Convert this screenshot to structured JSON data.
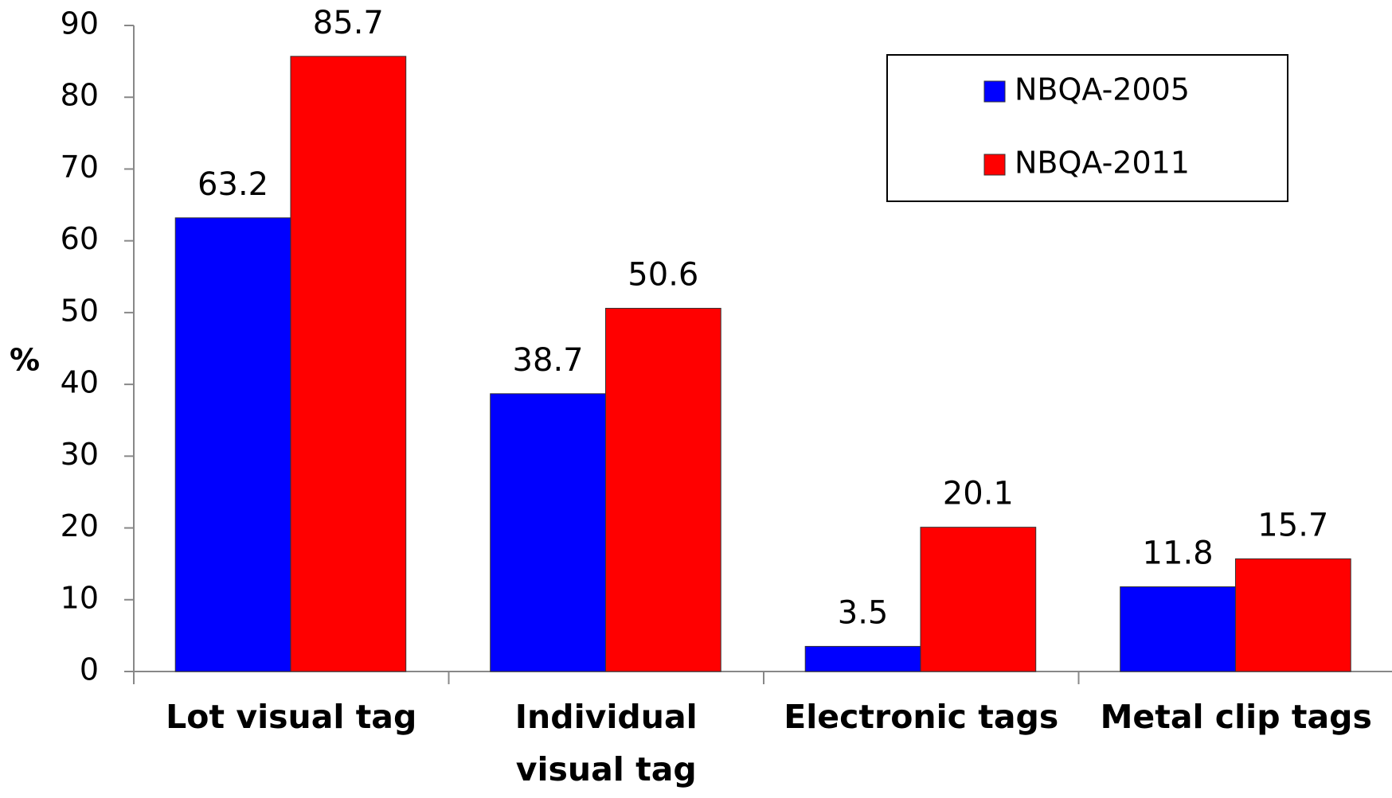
{
  "chart_data": {
    "type": "bar",
    "y_label": "%",
    "categories": [
      "Lot visual tag",
      "Individual visual tag",
      "Electronic tags",
      "Metal clip tags"
    ],
    "series": [
      {
        "name": "NBQA-2005",
        "color": "#0000ff",
        "values": [
          63.2,
          38.7,
          3.5,
          11.8
        ]
      },
      {
        "name": "NBQA-2011",
        "color": "#ff0000",
        "values": [
          85.7,
          50.6,
          20.1,
          15.7
        ]
      }
    ],
    "ylim": [
      0,
      90
    ],
    "yticks": [
      0,
      10,
      20,
      30,
      40,
      50,
      60,
      70,
      80,
      90
    ],
    "grid": false,
    "legend": "upper right"
  }
}
